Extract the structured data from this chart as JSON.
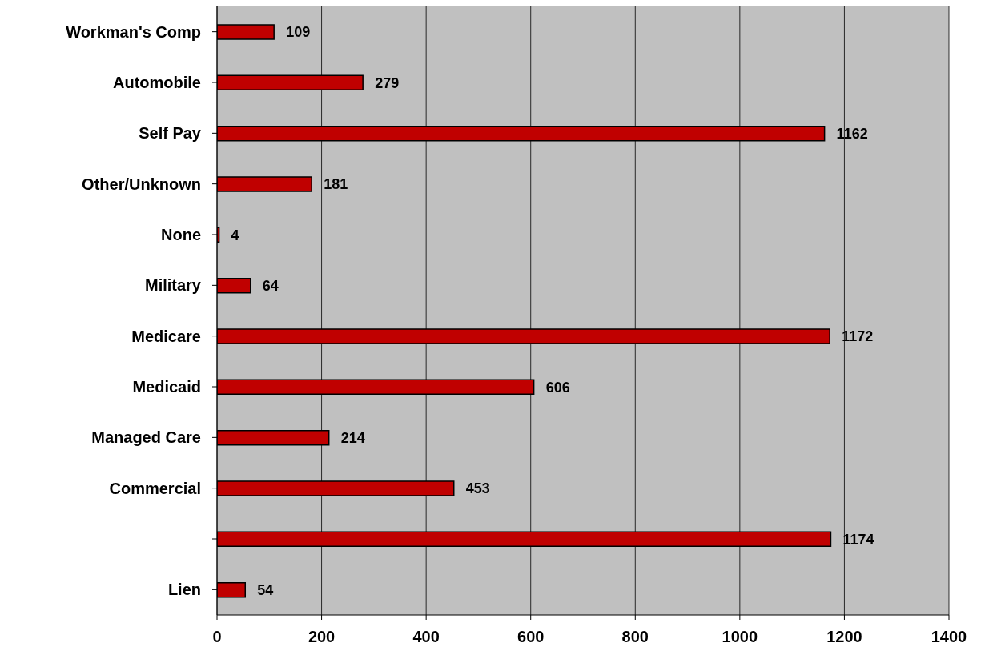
{
  "chart_data": {
    "type": "bar",
    "orientation": "horizontal",
    "categories": [
      "Workman's Comp",
      "Automobile",
      "Self Pay",
      "Other/Unknown",
      "None",
      "Military",
      "Medicare",
      "Medicaid",
      "Managed Care",
      "Commercial",
      null,
      "Lien"
    ],
    "values": [
      109,
      279,
      1162,
      181,
      4,
      64,
      1172,
      606,
      214,
      453,
      1174,
      54
    ],
    "color": "#c00000",
    "xlim": [
      0,
      1400
    ],
    "xticks": [
      0,
      200,
      400,
      600,
      800,
      1000,
      1200,
      1400
    ],
    "grid": "x",
    "data_labels": true
  }
}
